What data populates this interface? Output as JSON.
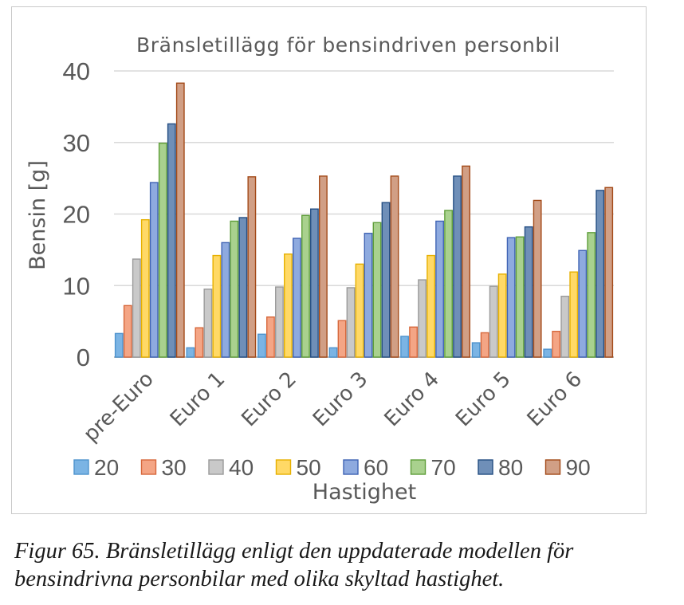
{
  "chart_data": {
    "type": "bar",
    "title": "Bränsletillägg för bensindriven personbil",
    "xlabel": "Hastighet",
    "ylabel": "Bensin [g]",
    "ylim": [
      0,
      40
    ],
    "yticks": [
      "0",
      "10",
      "20",
      "30",
      "40"
    ],
    "grid": "horizontal",
    "legend_position": "bottom",
    "categories": [
      "pre-Euro",
      "Euro 1",
      "Euro 2",
      "Euro 3",
      "Euro 4",
      "Euro 5",
      "Euro 6"
    ],
    "series": [
      {
        "name": "20",
        "color": "#7bb4e4",
        "border": "#4e93cd",
        "values": [
          3.3,
          1.3,
          3.2,
          1.3,
          2.9,
          2.0,
          1.1
        ]
      },
      {
        "name": "30",
        "color": "#f4a585",
        "border": "#d7683c",
        "values": [
          7.2,
          4.1,
          5.6,
          5.1,
          4.2,
          3.4,
          3.6
        ]
      },
      {
        "name": "40",
        "color": "#c9c9c9",
        "border": "#9a9a9a",
        "values": [
          13.7,
          9.5,
          9.8,
          9.7,
          10.8,
          9.9,
          8.5
        ]
      },
      {
        "name": "50",
        "color": "#ffd966",
        "border": "#e6b000",
        "values": [
          19.2,
          14.2,
          14.4,
          13.0,
          14.2,
          11.6,
          11.9
        ]
      },
      {
        "name": "60",
        "color": "#8eaadf",
        "border": "#3f63b4",
        "values": [
          24.4,
          16.0,
          16.6,
          17.3,
          19.0,
          16.7,
          14.9
        ]
      },
      {
        "name": "70",
        "color": "#a9d18e",
        "border": "#5f9e3a",
        "values": [
          29.9,
          19.0,
          19.8,
          18.8,
          20.5,
          16.8,
          17.4
        ]
      },
      {
        "name": "80",
        "color": "#6f8fb8",
        "border": "#244e83",
        "values": [
          32.6,
          19.5,
          20.7,
          21.6,
          25.3,
          18.2,
          23.3
        ]
      },
      {
        "name": "90",
        "color": "#d19f85",
        "border": "#a34a18",
        "values": [
          38.3,
          25.2,
          25.3,
          25.3,
          26.7,
          21.9,
          23.7
        ]
      }
    ]
  },
  "caption": {
    "line1": "Figur 65. Bränsletillägg enligt den uppdaterade modellen för",
    "line2": "bensindrivna personbilar med olika skyltad hastighet."
  }
}
